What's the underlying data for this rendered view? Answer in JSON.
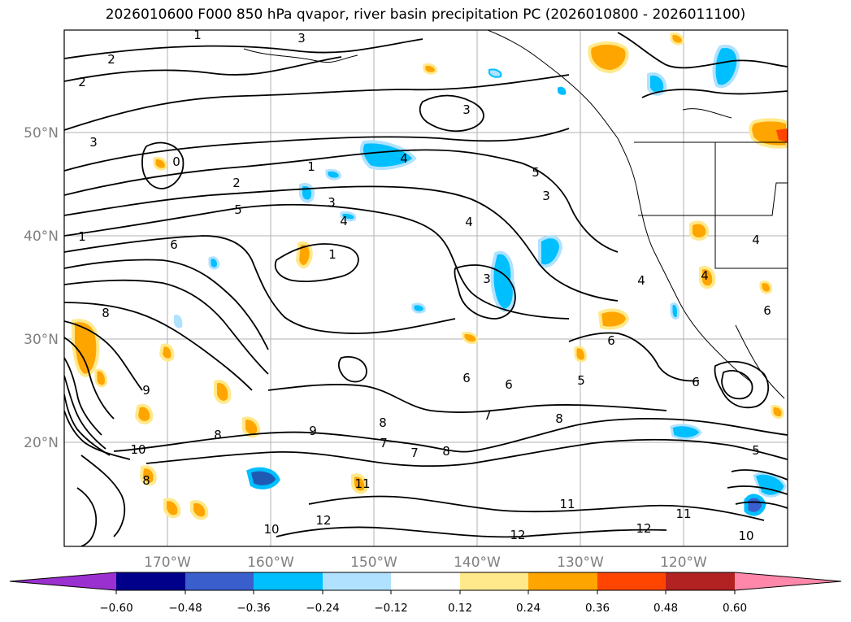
{
  "title": "2026010600 F000 850 hPa qvapor, river basin precipitation PC (2026010800 - 2026011100)",
  "map": {
    "lat_labels": [
      "50°N",
      "40°N",
      "30°N",
      "20°N"
    ],
    "lon_labels": [
      "170°W",
      "160°W",
      "150°W",
      "140°W",
      "130°W",
      "120°W"
    ],
    "contour_labels": [
      "1",
      "2",
      "3",
      "2",
      "3",
      "0",
      "2",
      "5",
      "6",
      "1",
      "4",
      "1",
      "4",
      "1",
      "5",
      "3",
      "3",
      "4",
      "3",
      "4",
      "4",
      "4",
      "3",
      "6",
      "6",
      "6",
      "5",
      "6",
      "7",
      "8",
      "8",
      "9",
      "7",
      "8",
      "7",
      "8",
      "8",
      "9",
      "10",
      "8",
      "11",
      "11",
      "12",
      "10",
      "12",
      "11",
      "12",
      "10",
      "5",
      "6"
    ]
  },
  "colorbar": {
    "ticks": [
      "−0.60",
      "−0.48",
      "−0.36",
      "−0.24",
      "−0.12",
      "0.12",
      "0.24",
      "0.36",
      "0.48",
      "0.60"
    ],
    "colors": [
      "#9b30d0",
      "#00008b",
      "#3a5fcd",
      "#00bfff",
      "#b0e2ff",
      "#ffffff",
      "#ffe98a",
      "#ffa500",
      "#ff4500",
      "#b22222",
      "#ff88aa"
    ]
  }
}
